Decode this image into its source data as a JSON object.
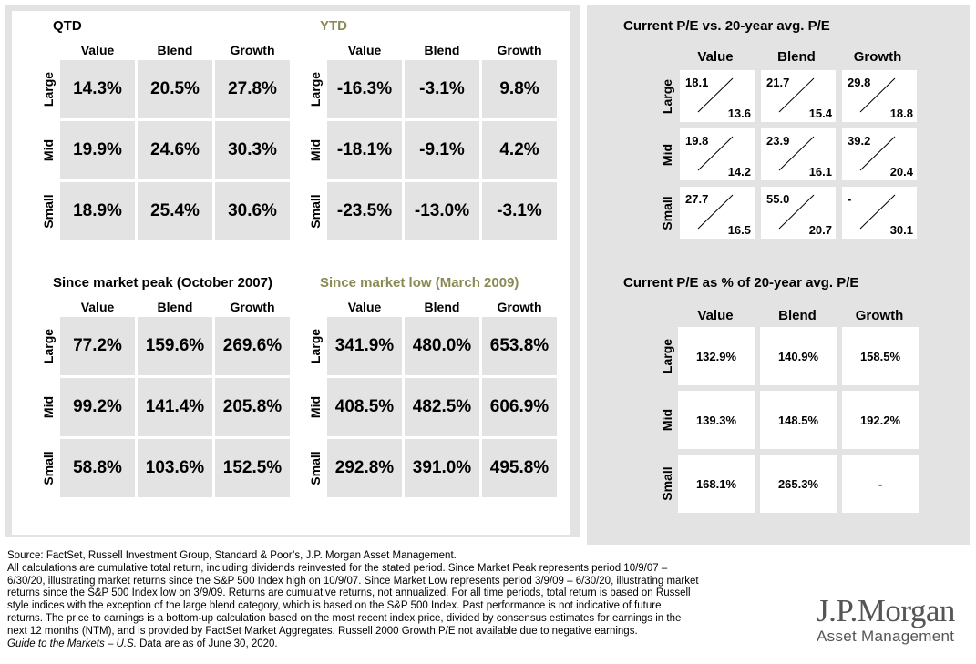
{
  "columns": [
    "Value",
    "Blend",
    "Growth"
  ],
  "rows": [
    "Large",
    "Mid",
    "Small"
  ],
  "sections": {
    "qtd": {
      "title": "QTD",
      "values": [
        [
          "14.3%",
          "20.5%",
          "27.8%"
        ],
        [
          "19.9%",
          "24.6%",
          "30.3%"
        ],
        [
          "18.9%",
          "25.4%",
          "30.6%"
        ]
      ]
    },
    "ytd": {
      "title": "YTD",
      "values": [
        [
          "-16.3%",
          "-3.1%",
          "9.8%"
        ],
        [
          "-18.1%",
          "-9.1%",
          "4.2%"
        ],
        [
          "-23.5%",
          "-13.0%",
          "-3.1%"
        ]
      ]
    },
    "peak": {
      "title": "Since market peak (October 2007)",
      "values": [
        [
          "77.2%",
          "159.6%",
          "269.6%"
        ],
        [
          "99.2%",
          "141.4%",
          "205.8%"
        ],
        [
          "58.8%",
          "103.6%",
          "152.5%"
        ]
      ]
    },
    "low": {
      "title": "Since market low (March 2009)",
      "values": [
        [
          "341.9%",
          "480.0%",
          "653.8%"
        ],
        [
          "408.5%",
          "482.5%",
          "606.9%"
        ],
        [
          "292.8%",
          "391.0%",
          "495.8%"
        ]
      ]
    }
  },
  "pe": {
    "title": "Current P/E vs. 20-year avg. P/E",
    "current": [
      [
        "18.1",
        "21.7",
        "29.8"
      ],
      [
        "19.8",
        "23.9",
        "39.2"
      ],
      [
        "27.7",
        "55.0",
        "-"
      ]
    ],
    "average": [
      [
        "13.6",
        "15.4",
        "18.8"
      ],
      [
        "14.2",
        "16.1",
        "20.4"
      ],
      [
        "16.5",
        "20.7",
        "30.1"
      ]
    ]
  },
  "pe_pct": {
    "title": "Current P/E as % of 20-year avg. P/E",
    "values": [
      [
        "132.9%",
        "140.9%",
        "158.5%"
      ],
      [
        "139.3%",
        "148.5%",
        "192.2%"
      ],
      [
        "168.1%",
        "265.3%",
        "-"
      ]
    ]
  },
  "footnote": {
    "lines": [
      "Source: FactSet, Russell Investment Group, Standard & Poor’s, J.P. Morgan Asset Management.",
      "All calculations are cumulative total return, including dividends reinvested for the stated period. Since Market Peak represents period 10/9/07 –",
      "6/30/20, illustrating market returns since the S&P 500 Index high on 10/9/07. Since Market Low represents period 3/9/09 – 6/30/20, illustrating market",
      "returns since the S&P 500 Index low on 3/9/09. Returns are cumulative returns, not annualized. For all time periods, total return is based on Russell",
      "style indices with the exception of the large blend category, which is based on the S&P 500 Index. Past performance is not indicative of future",
      "returns. The price to earnings is a bottom-up calculation based on the most recent index price, divided by consensus estimates for earnings in the",
      "next 12 months (NTM), and is provided by FactSet Market Aggregates. Russell 2000 Growth P/E not available due to negative earnings."
    ],
    "guide_italic": "Guide to the Markets – U.S.",
    "guide_rest": " Data are as of June 30, 2020."
  },
  "logo": {
    "name": "J.P.Morgan",
    "tagline": "Asset Management"
  },
  "chart_data": [
    {
      "type": "table",
      "title": "QTD",
      "columns": [
        "Value",
        "Blend",
        "Growth"
      ],
      "rows": [
        "Large",
        "Mid",
        "Small"
      ],
      "values": [
        [
          14.3,
          20.5,
          27.8
        ],
        [
          19.9,
          24.6,
          30.3
        ],
        [
          18.9,
          25.4,
          30.6
        ]
      ],
      "unit": "%"
    },
    {
      "type": "table",
      "title": "YTD",
      "columns": [
        "Value",
        "Blend",
        "Growth"
      ],
      "rows": [
        "Large",
        "Mid",
        "Small"
      ],
      "values": [
        [
          -16.3,
          -3.1,
          9.8
        ],
        [
          -18.1,
          -9.1,
          4.2
        ],
        [
          -23.5,
          -13.0,
          -3.1
        ]
      ],
      "unit": "%"
    },
    {
      "type": "table",
      "title": "Since market peak (October 2007)",
      "columns": [
        "Value",
        "Blend",
        "Growth"
      ],
      "rows": [
        "Large",
        "Mid",
        "Small"
      ],
      "values": [
        [
          77.2,
          159.6,
          269.6
        ],
        [
          99.2,
          141.4,
          205.8
        ],
        [
          58.8,
          103.6,
          152.5
        ]
      ],
      "unit": "%"
    },
    {
      "type": "table",
      "title": "Since market low (March 2009)",
      "columns": [
        "Value",
        "Blend",
        "Growth"
      ],
      "rows": [
        "Large",
        "Mid",
        "Small"
      ],
      "values": [
        [
          341.9,
          480.0,
          653.8
        ],
        [
          408.5,
          482.5,
          606.9
        ],
        [
          292.8,
          391.0,
          495.8
        ]
      ],
      "unit": "%"
    },
    {
      "type": "table",
      "title": "Current P/E vs. 20-year avg. P/E",
      "columns": [
        "Value",
        "Blend",
        "Growth"
      ],
      "rows": [
        "Large",
        "Mid",
        "Small"
      ],
      "current": [
        [
          18.1,
          21.7,
          29.8
        ],
        [
          19.8,
          23.9,
          39.2
        ],
        [
          27.7,
          55.0,
          null
        ]
      ],
      "average": [
        [
          13.6,
          15.4,
          18.8
        ],
        [
          14.2,
          16.1,
          20.4
        ],
        [
          16.5,
          20.7,
          30.1
        ]
      ]
    },
    {
      "type": "table",
      "title": "Current P/E as % of 20-year avg. P/E",
      "columns": [
        "Value",
        "Blend",
        "Growth"
      ],
      "rows": [
        "Large",
        "Mid",
        "Small"
      ],
      "values": [
        [
          132.9,
          140.9,
          158.5
        ],
        [
          139.3,
          148.5,
          192.2
        ],
        [
          168.1,
          265.3,
          null
        ]
      ],
      "unit": "%"
    }
  ]
}
